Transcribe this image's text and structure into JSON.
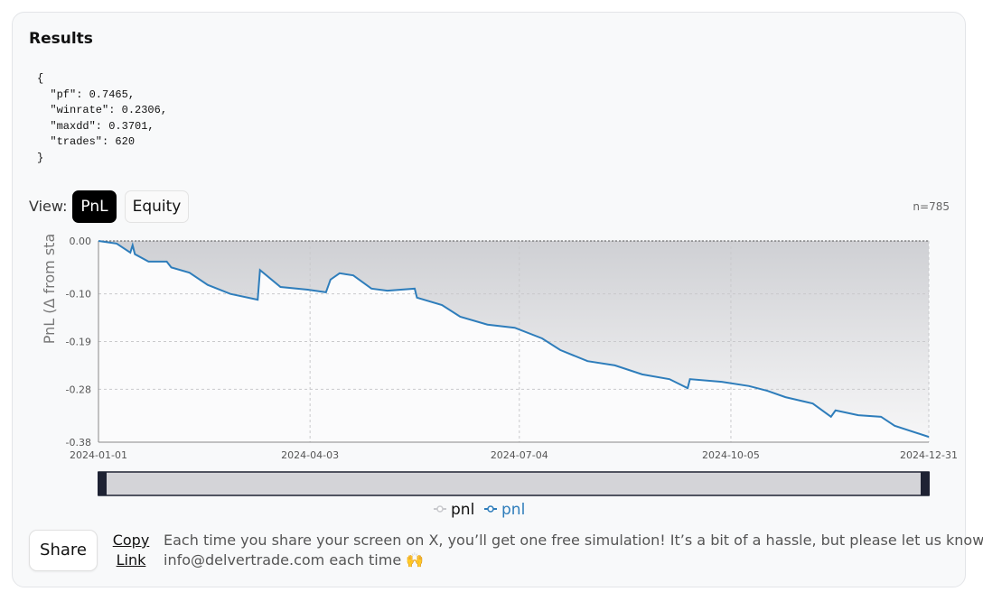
{
  "header": {
    "title": "Results"
  },
  "code": [
    "{",
    "  \"pf\": 0.7465,",
    "  \"winrate\": 0.2306,",
    "  \"maxdd\": 0.3701,",
    "  \"trades\": 620",
    "}"
  ],
  "view": {
    "label": "View:",
    "buttons": [
      "PnL",
      "Equity"
    ],
    "count": "n=785"
  },
  "chart_data": {
    "type": "line",
    "y_label": "PnL (Δ from sta",
    "x": [
      "2024-01-01",
      "2024-01-09",
      "2024-01-15",
      "2024-01-16",
      "2024-01-17",
      "2024-01-23",
      "2024-01-31",
      "2024-02-02",
      "2024-02-10",
      "2024-02-18",
      "2024-02-28",
      "2024-03-11",
      "2024-03-12",
      "2024-03-21",
      "2024-04-02",
      "2024-04-10",
      "2024-04-12",
      "2024-04-16",
      "2024-04-22",
      "2024-04-30",
      "2024-05-07",
      "2024-05-19",
      "2024-05-20",
      "2024-05-31",
      "2024-06-08",
      "2024-06-20",
      "2024-07-02",
      "2024-07-14",
      "2024-07-22",
      "2024-08-03",
      "2024-08-15",
      "2024-08-27",
      "2024-09-08",
      "2024-09-16",
      "2024-09-17",
      "2024-10-01",
      "2024-10-13",
      "2024-10-21",
      "2024-10-29",
      "2024-11-10",
      "2024-11-18",
      "2024-11-20",
      "2024-11-30",
      "2024-12-10",
      "2024-12-16",
      "2024-12-31"
    ],
    "series": [
      {
        "name": "pnl",
        "color": "#c8c9cd",
        "values": [
          0,
          0,
          0,
          0,
          0,
          0,
          0,
          0,
          0,
          0,
          0,
          0,
          0,
          0,
          0,
          0,
          0,
          0,
          0,
          0,
          0,
          0,
          0,
          0,
          0,
          0,
          0,
          0,
          0,
          0,
          0,
          0,
          0,
          0,
          0,
          0,
          0,
          0,
          0,
          0,
          0,
          0,
          0,
          0,
          0,
          0
        ]
      },
      {
        "name": "pnl",
        "color": "#2e7dbb",
        "values": [
          0,
          -0.005,
          -0.022,
          -0.008,
          -0.025,
          -0.039,
          -0.039,
          -0.05,
          -0.06,
          -0.083,
          -0.1,
          -0.111,
          -0.055,
          -0.087,
          -0.092,
          -0.097,
          -0.073,
          -0.061,
          -0.065,
          -0.09,
          -0.094,
          -0.09,
          -0.107,
          -0.121,
          -0.143,
          -0.158,
          -0.164,
          -0.184,
          -0.206,
          -0.227,
          -0.235,
          -0.252,
          -0.261,
          -0.278,
          -0.261,
          -0.266,
          -0.274,
          -0.283,
          -0.295,
          -0.307,
          -0.332,
          -0.32,
          -0.329,
          -0.332,
          -0.349,
          -0.37
        ]
      }
    ],
    "xlim": [
      "2024-01-01",
      "2024-12-31"
    ],
    "xticks": [
      "2024-01-01",
      "2024-04-03",
      "2024-07-04",
      "2024-10-05",
      "2024-12-31"
    ],
    "ylim": [
      -0.38,
      0
    ],
    "yticks": [
      {
        "value": 0,
        "label": "0.00"
      },
      {
        "value": -0.1,
        "label": "-0.10"
      },
      {
        "value": -0.19,
        "label": "-0.19"
      },
      {
        "value": -0.28,
        "label": "-0.28"
      },
      {
        "value": -0.38,
        "label": "-0.38"
      }
    ],
    "grid": true
  },
  "footer": {
    "share": "Share",
    "copy_link": [
      "Copy",
      "Link"
    ],
    "message": [
      "Each time you share your screen on X, you’ll get one free simulation! It’s a bit of a hassle, but please let us know at",
      "info@delvertrade.com each time 🙌"
    ]
  }
}
